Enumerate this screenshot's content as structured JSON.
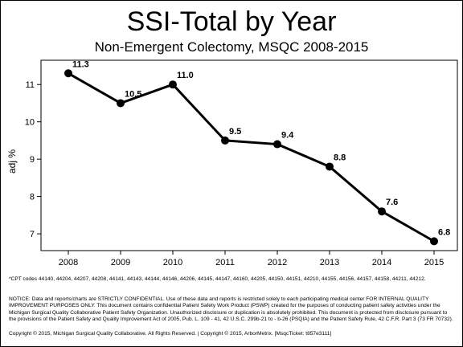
{
  "header": {
    "title": "SSI-Total by Year",
    "subtitle": "Non-Emergent Colectomy, MSQC 2008-2015"
  },
  "chart_data": {
    "type": "line",
    "title": "SSI-Total by Year",
    "subtitle": "Non-Emergent Colectomy, MSQC 2008-2015",
    "xlabel": "",
    "ylabel": "adj %",
    "categories": [
      "2008",
      "2009",
      "2010",
      "2011",
      "2012",
      "2013",
      "2014",
      "2015"
    ],
    "values": [
      11.3,
      10.5,
      11.0,
      9.5,
      9.4,
      8.8,
      7.6,
      6.8
    ],
    "data_labels": [
      "11.3",
      "10.5",
      "11.0",
      "9.5",
      "9.4",
      "8.8",
      "7.6",
      "6.8"
    ],
    "yticks": [
      7,
      8,
      9,
      10,
      11
    ],
    "ylim": [
      6.55,
      11.65
    ],
    "grid": false,
    "legend": "none",
    "line_color": "#000000"
  },
  "footnotes": {
    "cpt": "*CPT codes 44140, 44204, 44207, 44208, 44141, 44143, 44144, 44146, 44206, 44145, 44147, 44160, 44205, 44150, 44151, 44210, 44155, 44156, 44157, 44158, 44211, 44212.",
    "notice": "NOTICE: Data and reports/charts are STRICTLY CONFIDENTIAL. Use of these data and reports is restricted solely to each participating medical center FOR INTERNAL QUALITY IMPROVEMENT PURPOSES ONLY. This document contains confidential Patient Safety Work Product (PSWP) created for the purposes of conducting patient safety activities under the Michigan Surgical Quality Collaborative Patient Safety Organization. Unauthorized disclosure or duplication is absolutely prohibited. This document is protected from disclosure pursuant to the provisions of the Patient Safety and Quality Improvement Act of 2005, Pub. L. 109 - 41, 42 U.S.C. 299b-21 to - b-26 (PSQIA) and the Patient Safety Rule, 42 C.F.R. Part 3 (73 FR 70732).",
    "copyright": "Copyright © 2015, Michigan Surgical Quality Collaborative. All Rights Reserved. | Copyright © 2015, ArborMetrix. [MsqcTicket: t857e3111]"
  }
}
